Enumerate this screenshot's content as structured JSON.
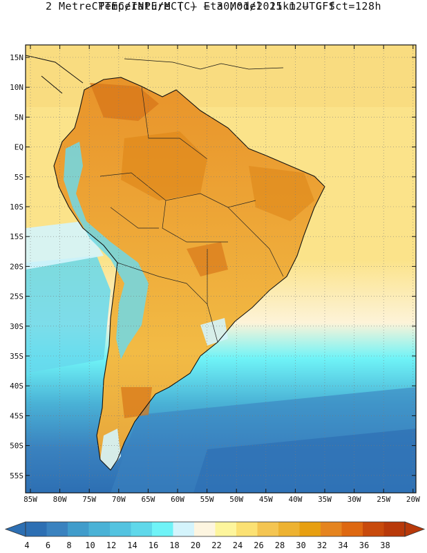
{
  "header": {
    "line1": "CPTEC/INPE/MCT –  Eta Model 15km – GFS",
    "line2": "2 Metre Temperature (C) – 30/01/2021 12UTC fct=128h"
  },
  "axes": {
    "lat_labels": [
      "15N",
      "10N",
      "5N",
      "EQ",
      "5S",
      "10S",
      "15S",
      "20S",
      "25S",
      "30S",
      "35S",
      "40S",
      "45S",
      "50S",
      "55S"
    ],
    "lon_labels": [
      "85W",
      "80W",
      "75W",
      "70W",
      "65W",
      "60W",
      "55W",
      "50W",
      "45W",
      "40W",
      "35W",
      "30W",
      "25W",
      "20W"
    ]
  },
  "colorbar": {
    "labels": [
      "4",
      "6",
      "8",
      "10",
      "12",
      "14",
      "16",
      "18",
      "20",
      "22",
      "24",
      "26",
      "28",
      "30",
      "32",
      "34",
      "36",
      "38"
    ],
    "colors": [
      "#2d6fb3",
      "#3a82bf",
      "#409ccb",
      "#4ab2d6",
      "#53c3e0",
      "#5fd8ea",
      "#6ff3f7",
      "#d4f4fc",
      "#fdf5e0",
      "#fdf59c",
      "#fbe173",
      "#f4c552",
      "#edb231",
      "#e79f10",
      "#e5841f",
      "#de6811",
      "#c84a0c",
      "#b8390a"
    ]
  },
  "colors": {
    "ocean_cold": "#2e6aa8",
    "ocean_mid": "#45a3cf",
    "ocean_cool": "#66e0f0",
    "ocean_warm": "#fbe38a",
    "land_hot": "#e89a2a",
    "land_warm": "#f0b53e",
    "andes": "#6fd8e8"
  }
}
